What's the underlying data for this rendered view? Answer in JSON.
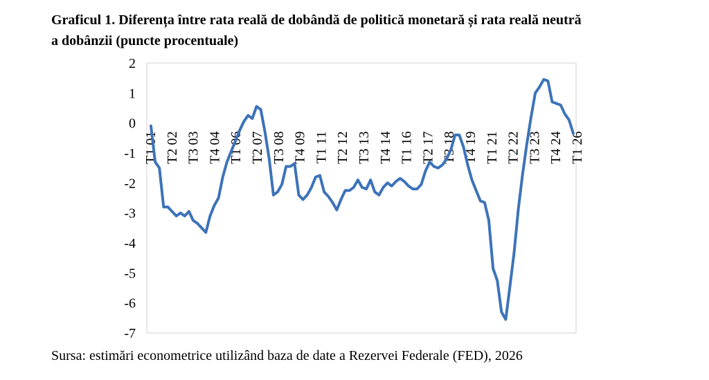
{
  "title_lines": [
    "Graficul 1. Diferența între rata reală de dobândă de politică monetară și rata reală neutră",
    "a dobânzii (puncte procentuale)"
  ],
  "source": "Sursa: estimări econometrice utilizând baza de date a Rezervei Federale (FED), 2026",
  "chart_data": {
    "type": "line",
    "title": "Graficul 1. Diferența între rata reală de dobândă de politică monetară și rata reală neutră a dobânzii (puncte procentuale)",
    "ylim": [
      -7,
      2
    ],
    "y_ticks": [
      2,
      1,
      0,
      -1,
      -2,
      -3,
      -4,
      -5,
      -6,
      -7
    ],
    "grid": false,
    "x_tick_labels": [
      "T1 01",
      "T2 02",
      "T3 03",
      "T4 04",
      "T1 06",
      "T2 07",
      "T3 08",
      "T4 09",
      "T1 11",
      "T2 12",
      "T3 13",
      "T4 14",
      "T1 16",
      "T2 17",
      "T3 18",
      "T4 19",
      "T1 21",
      "T2 22",
      "T3 23",
      "T4 24",
      "T1 26"
    ],
    "series": [
      {
        "color": "#3d73b9",
        "values": [
          -0.1,
          -1.3,
          -1.5,
          -2.8,
          -2.8,
          -2.95,
          -3.1,
          -3.0,
          -3.1,
          -2.95,
          -3.25,
          -3.35,
          -3.5,
          -3.65,
          -3.1,
          -2.75,
          -2.5,
          -1.8,
          -1.3,
          -0.95,
          -0.6,
          -0.25,
          0.05,
          0.25,
          0.15,
          0.55,
          0.45,
          -0.3,
          -1.2,
          -2.4,
          -2.3,
          -2.05,
          -1.45,
          -1.45,
          -1.35,
          -2.4,
          -2.55,
          -2.4,
          -2.15,
          -1.8,
          -1.75,
          -2.3,
          -2.45,
          -2.65,
          -2.9,
          -2.55,
          -2.25,
          -2.25,
          -2.15,
          -1.9,
          -2.15,
          -2.2,
          -1.9,
          -2.3,
          -2.4,
          -2.15,
          -2.0,
          -2.1,
          -1.95,
          -1.85,
          -1.95,
          -2.1,
          -2.2,
          -2.2,
          -2.05,
          -1.6,
          -1.3,
          -1.45,
          -1.5,
          -1.4,
          -1.2,
          -0.9,
          -0.4,
          -0.4,
          -0.8,
          -1.4,
          -1.9,
          -2.25,
          -2.6,
          -2.65,
          -3.25,
          -4.85,
          -5.25,
          -6.3,
          -6.55,
          -5.45,
          -4.3,
          -2.85,
          -1.7,
          -0.7,
          0.2,
          1.0,
          1.2,
          1.45,
          1.4,
          0.7,
          0.65,
          0.6,
          0.3,
          0.1,
          -0.35
        ]
      }
    ]
  }
}
